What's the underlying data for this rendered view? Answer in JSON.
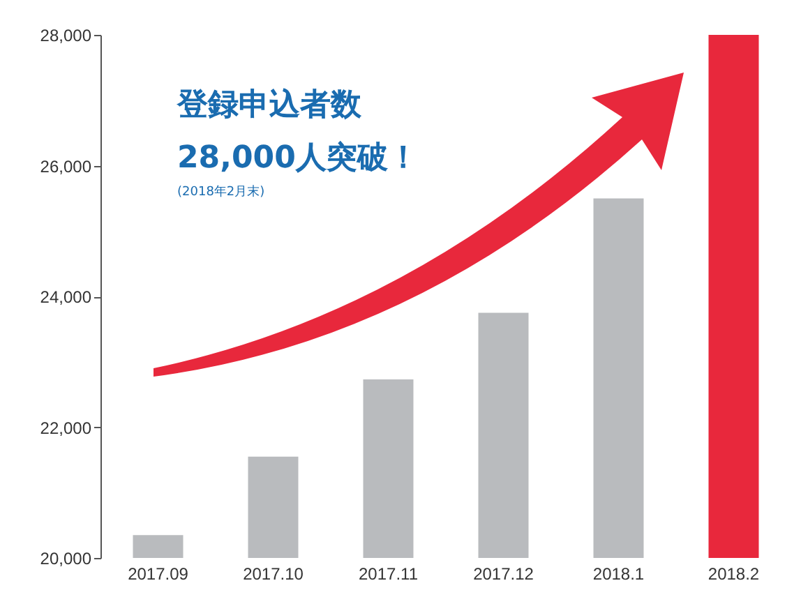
{
  "chart_data": {
    "type": "bar",
    "categories": [
      "2017.09",
      "2017.10",
      "2017.11",
      "2017.12",
      "2018.1",
      "2018.2"
    ],
    "values": [
      20350,
      21550,
      22730,
      23750,
      25500,
      28000
    ],
    "colors": [
      "#b9bbbe",
      "#b9bbbe",
      "#b9bbbe",
      "#b9bbbe",
      "#b9bbbe",
      "#e8283c"
    ],
    "ylim": [
      20000,
      28000
    ],
    "yticks": [
      {
        "value": 20000,
        "label": "20,000"
      },
      {
        "value": 22000,
        "label": "22,000"
      },
      {
        "value": 24000,
        "label": "24,000"
      },
      {
        "value": 26000,
        "label": "26,000"
      },
      {
        "value": 28000,
        "label": "28,000"
      }
    ],
    "annotations": [
      "登録申込者数",
      "28,000人突破！",
      "(2018年2月末)"
    ],
    "grid": false
  }
}
